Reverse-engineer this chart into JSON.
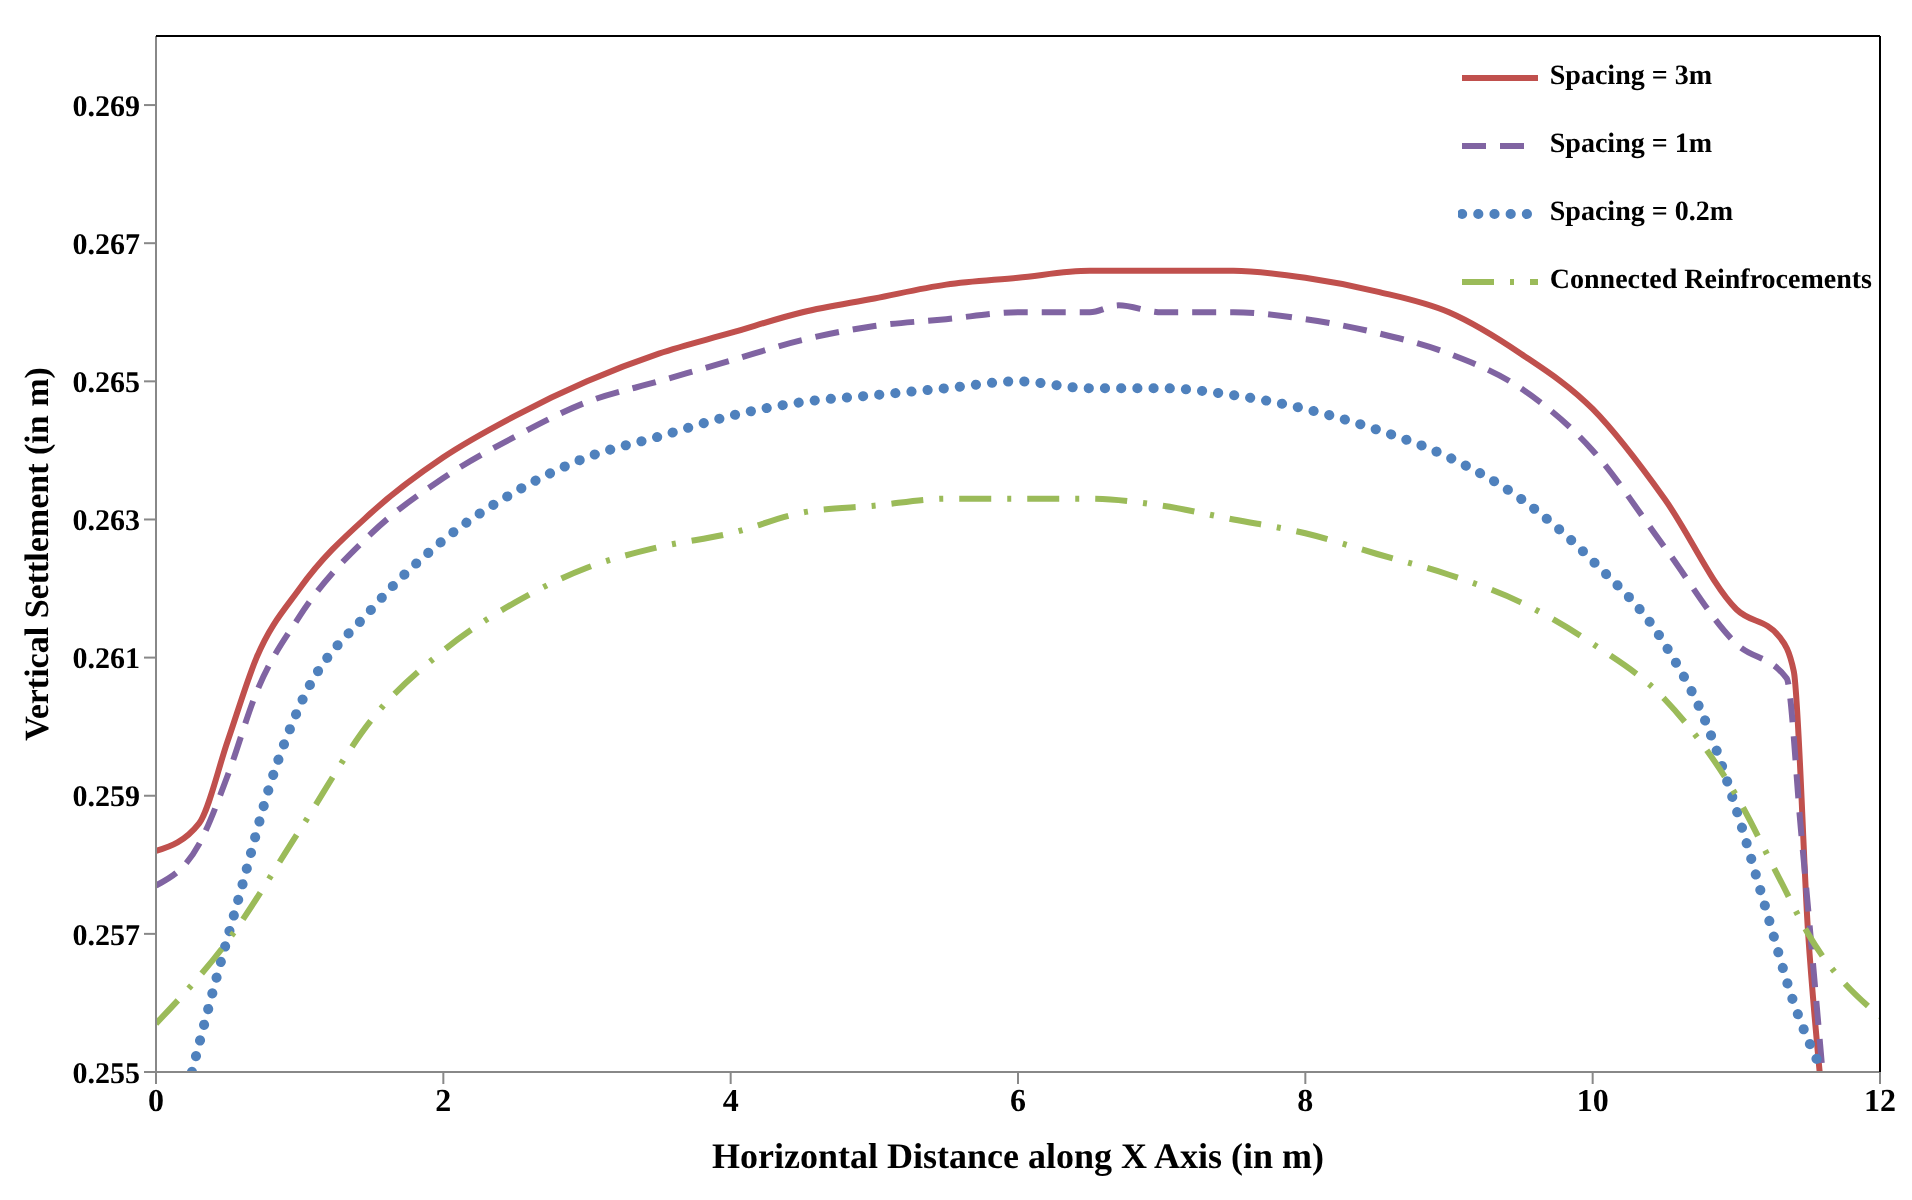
{
  "chart_data": {
    "type": "line",
    "xlabel": "Horizontal Distance along X Axis (in m)",
    "ylabel": "Vertical Settlement (in m)",
    "xlim": [
      0,
      12
    ],
    "xticks": [
      0,
      2,
      4,
      6,
      8,
      10,
      12
    ],
    "ylim": [
      0.255,
      0.27
    ],
    "yticks": [
      0.255,
      0.257,
      0.259,
      0.261,
      0.263,
      0.265,
      0.267,
      0.269
    ],
    "grid": false,
    "legend": "top right",
    "marker": "none",
    "series": [
      {
        "name": "Spacing = 3m",
        "color": "#c0504d",
        "line_style": "solid",
        "x": [
          0,
          0.3,
          0.5,
          0.7,
          1,
          1.5,
          2,
          2.5,
          3,
          3.5,
          4,
          4.5,
          5,
          5.5,
          6,
          6.5,
          7,
          7.5,
          8,
          8.5,
          9,
          9.5,
          10,
          10.5,
          11,
          11.3,
          11.4,
          11.5,
          11.58
        ],
        "values": [
          0.2582,
          0.2586,
          0.2598,
          0.261,
          0.262,
          0.2631,
          0.2639,
          0.2645,
          0.265,
          0.2654,
          0.2657,
          0.266,
          0.2662,
          0.2664,
          0.2665,
          0.2666,
          0.2666,
          0.2666,
          0.2665,
          0.2663,
          0.266,
          0.2654,
          0.2646,
          0.2633,
          0.2617,
          0.2613,
          0.2608,
          0.257,
          0.255
        ]
      },
      {
        "name": "Spacing = 1m",
        "color": "#8064a2",
        "line_style": "dashed",
        "x": [
          0,
          0.3,
          0.5,
          0.7,
          1,
          1.5,
          2,
          2.5,
          3,
          3.5,
          4,
          4.5,
          5,
          5.5,
          6,
          6.5,
          6.7,
          7,
          7.5,
          8,
          8.5,
          9,
          9.5,
          10,
          10.5,
          11,
          11.35,
          11.45,
          11.6
        ],
        "values": [
          0.2577,
          0.2583,
          0.2593,
          0.2605,
          0.2616,
          0.2628,
          0.2636,
          0.2642,
          0.2647,
          0.265,
          0.2653,
          0.2656,
          0.2658,
          0.2659,
          0.266,
          0.266,
          0.2661,
          0.266,
          0.266,
          0.2659,
          0.2657,
          0.2654,
          0.2649,
          0.264,
          0.2626,
          0.2612,
          0.2607,
          0.2585,
          0.255
        ]
      },
      {
        "name": "Spacing = 0.2m",
        "color": "#4f81bd",
        "line_style": "dotted",
        "x": [
          0.25,
          0.4,
          0.6,
          0.8,
          1,
          1.5,
          2,
          2.5,
          3,
          3.5,
          4,
          4.5,
          5,
          5.5,
          6,
          6.5,
          7,
          7.5,
          8,
          8.5,
          9,
          9.5,
          10,
          10.5,
          10.8,
          11,
          11.2,
          11.4,
          11.6
        ],
        "values": [
          0.255,
          0.2562,
          0.2577,
          0.2592,
          0.2603,
          0.2617,
          0.2627,
          0.2634,
          0.2639,
          0.2642,
          0.2645,
          0.2647,
          0.2648,
          0.2649,
          0.265,
          0.2649,
          0.2649,
          0.2648,
          0.2646,
          0.2643,
          0.2639,
          0.2633,
          0.2624,
          0.2612,
          0.26,
          0.2588,
          0.2574,
          0.256,
          0.255
        ]
      },
      {
        "name": "Connected Reinfrocements",
        "color": "#9bbb59",
        "line_style": "dashdot",
        "x": [
          0,
          0.5,
          1,
          1.5,
          2,
          2.5,
          3,
          3.5,
          4,
          4.5,
          5,
          5.5,
          6,
          6.5,
          7,
          7.5,
          8,
          8.5,
          9,
          9.5,
          10,
          10.5,
          11,
          11.3,
          11.5,
          12
        ],
        "values": [
          0.2557,
          0.2569,
          0.2585,
          0.2601,
          0.2611,
          0.2618,
          0.2623,
          0.2626,
          0.2628,
          0.2631,
          0.2632,
          0.2633,
          0.2633,
          0.2633,
          0.2632,
          0.263,
          0.2628,
          0.2625,
          0.2622,
          0.2618,
          0.2612,
          0.2604,
          0.259,
          0.2578,
          0.257,
          0.2558
        ]
      }
    ]
  }
}
